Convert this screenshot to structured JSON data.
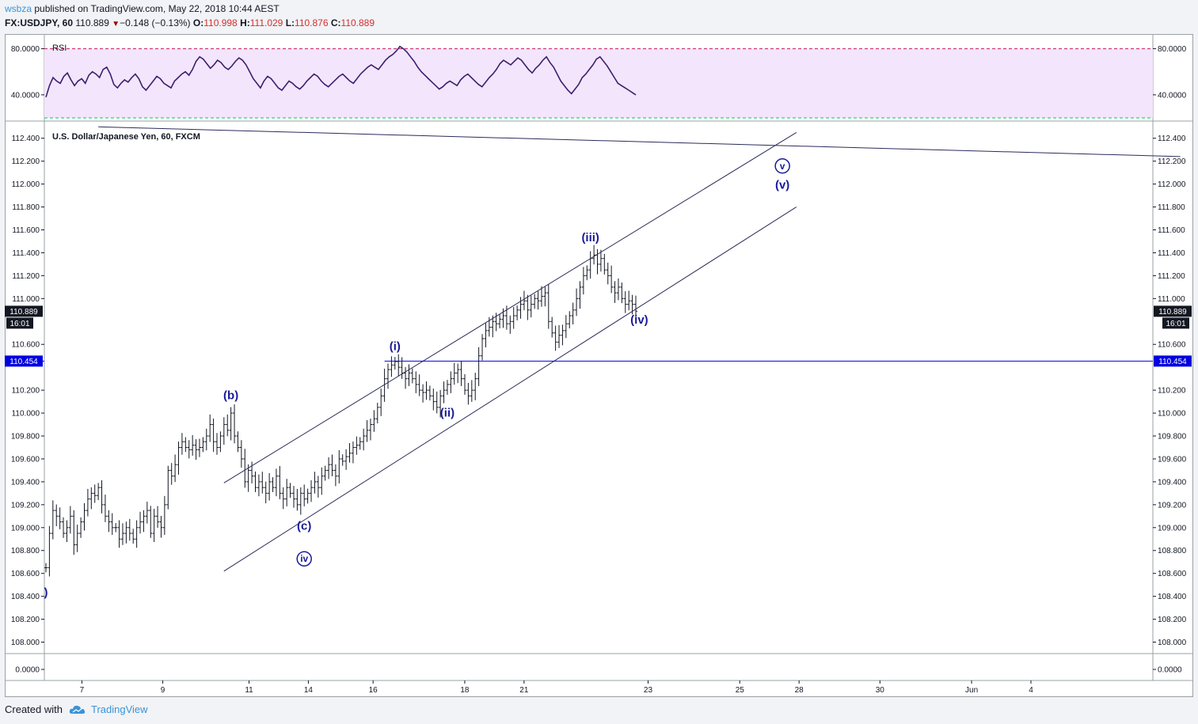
{
  "header": {
    "author": "wsbza",
    "published_text": "published on TradingView.com, May 22, 2018 10:44 AEST",
    "symbol": "FX:USDJPY, 60",
    "last": "110.889",
    "change": "−0.148 (−0.13%)",
    "o_label": "O:",
    "o_val": "110.998",
    "h_label": "H:",
    "h_val": "111.029",
    "l_label": "L:",
    "l_val": "110.876",
    "c_label": "C:",
    "c_val": "110.889"
  },
  "footer": {
    "created_with": "Created with",
    "brand": "TradingView"
  },
  "colors": {
    "candle": "#131722",
    "wave_label": "#1a1a9a",
    "channel": "#2b2b5a",
    "horizontal_line": "#0000e0",
    "rsi_line": "#3c1f6e",
    "rsi_band": "#f3e5fb",
    "rsi_upper": "#c2185b",
    "rsi_lower": "#00c853"
  },
  "chart_data": [
    {
      "type": "line",
      "title": "RSI",
      "y_ticks": [
        "80.0000",
        "40.0000"
      ],
      "ylim": [
        20,
        90
      ],
      "bands": {
        "upper": 80,
        "lower": 20
      },
      "values": [
        38,
        48,
        55,
        52,
        50,
        56,
        59,
        53,
        48,
        52,
        54,
        50,
        57,
        60,
        58,
        55,
        62,
        64,
        58,
        49,
        46,
        50,
        53,
        51,
        55,
        58,
        54,
        47,
        44,
        48,
        52,
        56,
        54,
        50,
        48,
        46,
        52,
        55,
        58,
        60,
        57,
        62,
        69,
        73,
        71,
        67,
        63,
        66,
        70,
        68,
        64,
        62,
        65,
        69,
        72,
        70,
        66,
        60,
        54,
        50,
        46,
        52,
        56,
        54,
        50,
        46,
        44,
        48,
        52,
        50,
        47,
        45,
        48,
        52,
        55,
        58,
        56,
        52,
        49,
        47,
        50,
        53,
        56,
        58,
        55,
        52,
        50,
        54,
        58,
        61,
        64,
        66,
        64,
        62,
        66,
        70,
        73,
        75,
        78,
        82,
        80,
        77,
        73,
        69,
        64,
        60,
        57,
        54,
        51,
        48,
        45,
        47,
        50,
        52,
        50,
        48,
        53,
        56,
        58,
        55,
        52,
        49,
        47,
        51,
        55,
        58,
        62,
        67,
        70,
        68,
        66,
        69,
        72,
        70,
        66,
        62,
        59,
        63,
        66,
        70,
        73,
        68,
        64,
        58,
        52,
        48,
        44,
        41,
        45,
        49,
        55,
        58,
        62,
        66,
        71,
        73,
        69,
        65,
        60,
        55,
        50,
        48,
        46,
        44,
        42,
        40
      ]
    },
    {
      "type": "line",
      "title": "U.S. Dollar/Japanese Yen, 60, FXCM",
      "y_ticks": [
        "112.400",
        "112.200",
        "112.000",
        "111.800",
        "111.600",
        "111.400",
        "111.200",
        "111.000",
        "110.600",
        "110.200",
        "110.000",
        "109.800",
        "109.600",
        "109.400",
        "109.200",
        "109.000",
        "108.800",
        "108.600",
        "108.400",
        "108.200",
        "108.000"
      ],
      "ylim": [
        107.9,
        112.55
      ],
      "x_ticks": [
        "7",
        "9",
        "11",
        "14",
        "16",
        "18",
        "21",
        "23",
        "25",
        "28",
        "30",
        "Jun",
        "4"
      ],
      "last_price_label": "110.889",
      "countdown_label": "16:01",
      "hline_label": "110.454",
      "hline_value": 110.454,
      "values": [
        108.65,
        108.95,
        109.15,
        109.1,
        109.05,
        108.95,
        109.0,
        109.1,
        108.85,
        108.95,
        109.05,
        109.15,
        109.25,
        109.3,
        109.28,
        109.35,
        109.2,
        109.1,
        109.05,
        109.0,
        109.0,
        108.9,
        108.95,
        109.0,
        108.95,
        108.9,
        109.0,
        109.05,
        109.1,
        109.15,
        108.95,
        109.1,
        109.05,
        109.0,
        109.2,
        109.5,
        109.45,
        109.55,
        109.7,
        109.75,
        109.7,
        109.68,
        109.72,
        109.68,
        109.7,
        109.75,
        109.8,
        109.9,
        109.75,
        109.7,
        109.8,
        109.9,
        109.85,
        110.0,
        109.8,
        109.7,
        109.6,
        109.4,
        109.5,
        109.45,
        109.35,
        109.4,
        109.35,
        109.3,
        109.4,
        109.35,
        109.45,
        109.3,
        109.25,
        109.35,
        109.3,
        109.25,
        109.2,
        109.3,
        109.25,
        109.3,
        109.35,
        109.4,
        109.35,
        109.45,
        109.5,
        109.55,
        109.5,
        109.45,
        109.6,
        109.58,
        109.62,
        109.65,
        109.7,
        109.72,
        109.75,
        109.8,
        109.85,
        109.9,
        109.95,
        110.05,
        110.15,
        110.3,
        110.38,
        110.42,
        110.45,
        110.4,
        110.35,
        110.3,
        110.35,
        110.3,
        110.25,
        110.2,
        110.18,
        110.2,
        110.15,
        110.1,
        110.05,
        110.15,
        110.2,
        110.25,
        110.3,
        110.35,
        110.38,
        110.3,
        110.2,
        110.15,
        110.2,
        110.3,
        110.5,
        110.65,
        110.72,
        110.75,
        110.8,
        110.78,
        110.82,
        110.85,
        110.78,
        110.8,
        110.85,
        110.9,
        110.95,
        110.98,
        110.9,
        110.95,
        111.0,
        110.98,
        111.02,
        111.05,
        110.8,
        110.7,
        110.62,
        110.68,
        110.72,
        110.78,
        110.85,
        110.9,
        111.0,
        111.1,
        111.2,
        111.25,
        111.35,
        111.38,
        111.3,
        111.35,
        111.25,
        111.2,
        111.1,
        111.05,
        111.1,
        111.0,
        110.95,
        110.98,
        110.95,
        110.89
      ],
      "annotations": [
        {
          "text": "(b)",
          "x_index": 53,
          "y": 110.12
        },
        {
          "text": "(c)",
          "x_index": 74,
          "y": 108.98
        },
        {
          "text": "(i)",
          "x_index": 100,
          "y": 110.55
        },
        {
          "text": "(ii)",
          "x_index": 115,
          "y": 109.97
        },
        {
          "text": "(iii)",
          "x_index": 156,
          "y": 111.5
        },
        {
          "text": "(iv)",
          "x_index": 170,
          "y": 110.78
        },
        {
          "text": "(v)",
          "x_index": 211,
          "y": 111.96
        },
        {
          "text": "v",
          "x_index": 211,
          "y": 112.13,
          "circled": true
        },
        {
          "text": "iv",
          "x_index": 74,
          "y": 108.7,
          "circled": true
        },
        {
          "text": ")",
          "x_index": 0,
          "y": 108.4
        }
      ]
    }
  ]
}
